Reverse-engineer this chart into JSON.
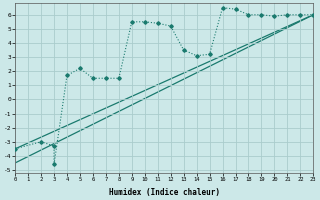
{
  "xlabel": "Humidex (Indice chaleur)",
  "bg_color": "#cce8e8",
  "grid_color": "#aacccc",
  "line_color": "#1a7a6e",
  "xlim": [
    0,
    23
  ],
  "ylim": [
    -5.2,
    6.8
  ],
  "xticks": [
    0,
    1,
    2,
    3,
    4,
    5,
    6,
    7,
    8,
    9,
    10,
    11,
    12,
    13,
    14,
    15,
    16,
    17,
    18,
    19,
    20,
    21,
    22,
    23
  ],
  "yticks": [
    -5,
    -4,
    -3,
    -2,
    -1,
    0,
    1,
    2,
    3,
    4,
    5,
    6
  ],
  "series1_x": [
    0,
    2,
    3,
    3,
    4,
    5,
    6,
    7,
    8,
    9,
    10,
    11,
    12,
    13,
    14,
    15,
    16,
    17,
    18,
    19,
    20,
    21,
    22,
    23
  ],
  "series1_y": [
    -3.5,
    -3.0,
    -3.3,
    -4.6,
    1.7,
    2.2,
    1.5,
    1.5,
    1.5,
    5.5,
    5.5,
    5.4,
    5.2,
    3.5,
    3.1,
    3.2,
    6.5,
    6.4,
    6.0,
    6.0,
    5.9,
    6.0,
    6.0,
    6.0
  ],
  "line2_x": [
    0,
    23
  ],
  "line2_y": [
    -3.5,
    6.0
  ],
  "line3_x": [
    0,
    23
  ],
  "line3_y": [
    -4.5,
    6.0
  ]
}
